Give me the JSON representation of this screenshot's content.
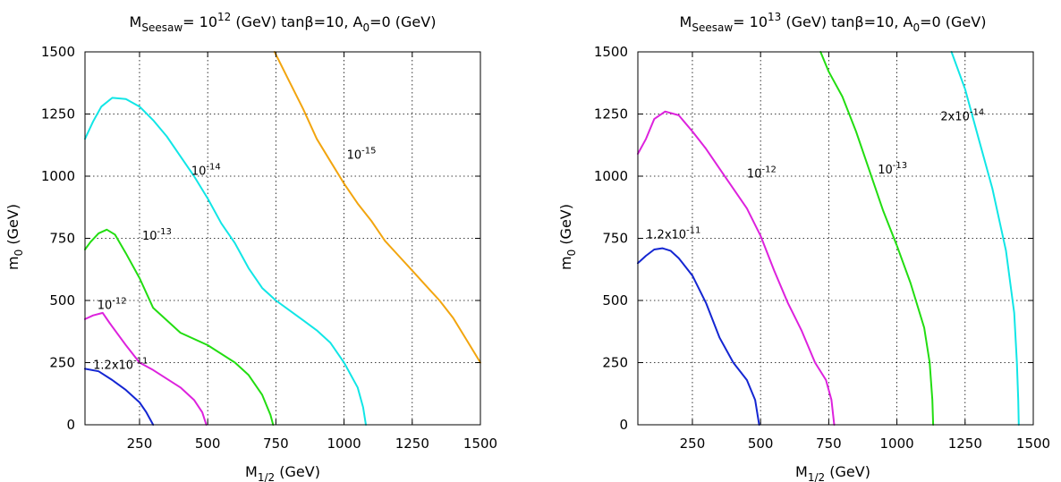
{
  "chart_data": [
    {
      "type": "line",
      "title": {
        "prefix": "M",
        "prefix_sub": "Seesaw",
        "mid": "= 10",
        "exp": "12",
        "suffix": " (GeV) tanβ=10, A",
        "suffix_sub": "0",
        "end": "=0 (GeV)"
      },
      "xlabel": {
        "main": "M",
        "sub": "1/2",
        "rest": " (GeV)"
      },
      "ylabel": {
        "main": "m",
        "sub": "0",
        "rest": " (GeV)"
      },
      "xlim": [
        50,
        1500
      ],
      "ylim": [
        0,
        1500
      ],
      "xticks": [
        250,
        500,
        750,
        1000,
        1250,
        1500
      ],
      "yticks": [
        0,
        250,
        500,
        750,
        1000,
        1250,
        1500
      ],
      "grid": true,
      "series": [
        {
          "label": {
            "base": "1.2x10",
            "exp": "-11"
          },
          "label_at": [
            80,
            225
          ],
          "color": "#1426d2",
          "points": [
            [
              50,
              225
            ],
            [
              100,
              215
            ],
            [
              150,
              180
            ],
            [
              200,
              140
            ],
            [
              250,
              90
            ],
            [
              275,
              50
            ],
            [
              300,
              0
            ]
          ]
        },
        {
          "label": {
            "base": "10",
            "exp": "-12"
          },
          "label_at": [
            95,
            465
          ],
          "color": "#dd22dd",
          "points": [
            [
              50,
              425
            ],
            [
              80,
              440
            ],
            [
              115,
              450
            ],
            [
              140,
              410
            ],
            [
              200,
              320
            ],
            [
              250,
              250
            ],
            [
              300,
              220
            ],
            [
              400,
              150
            ],
            [
              450,
              100
            ],
            [
              480,
              50
            ],
            [
              495,
              0
            ]
          ]
        },
        {
          "label": {
            "base": "10",
            "exp": "-13"
          },
          "label_at": [
            260,
            745
          ],
          "color": "#22dd11",
          "points": [
            [
              50,
              705
            ],
            [
              70,
              735
            ],
            [
              100,
              770
            ],
            [
              130,
              785
            ],
            [
              160,
              765
            ],
            [
              200,
              690
            ],
            [
              250,
              590
            ],
            [
              300,
              470
            ],
            [
              400,
              370
            ],
            [
              500,
              320
            ],
            [
              600,
              250
            ],
            [
              650,
              200
            ],
            [
              700,
              120
            ],
            [
              730,
              40
            ],
            [
              740,
              0
            ]
          ]
        },
        {
          "label": {
            "base": "10",
            "exp": "-14"
          },
          "label_at": [
            440,
            1005
          ],
          "color": "#11e6e6",
          "points": [
            [
              50,
              1150
            ],
            [
              80,
              1220
            ],
            [
              110,
              1280
            ],
            [
              150,
              1315
            ],
            [
              200,
              1310
            ],
            [
              250,
              1280
            ],
            [
              300,
              1225
            ],
            [
              350,
              1160
            ],
            [
              400,
              1080
            ],
            [
              450,
              1000
            ],
            [
              500,
              910
            ],
            [
              550,
              810
            ],
            [
              600,
              730
            ],
            [
              650,
              630
            ],
            [
              700,
              550
            ],
            [
              750,
              500
            ],
            [
              800,
              460
            ],
            [
              850,
              420
            ],
            [
              900,
              380
            ],
            [
              950,
              330
            ],
            [
              1000,
              250
            ],
            [
              1050,
              150
            ],
            [
              1070,
              70
            ],
            [
              1080,
              0
            ]
          ]
        },
        {
          "label": {
            "base": "10",
            "exp": "-15"
          },
          "label_at": [
            1010,
            1070
          ],
          "color": "#f2a50f",
          "points": [
            [
              745,
              1500
            ],
            [
              800,
              1380
            ],
            [
              850,
              1270
            ],
            [
              900,
              1150
            ],
            [
              950,
              1060
            ],
            [
              1000,
              970
            ],
            [
              1050,
              890
            ],
            [
              1100,
              820
            ],
            [
              1150,
              740
            ],
            [
              1200,
              680
            ],
            [
              1250,
              620
            ],
            [
              1300,
              560
            ],
            [
              1350,
              500
            ],
            [
              1400,
              430
            ],
            [
              1450,
              340
            ],
            [
              1500,
              250
            ]
          ]
        }
      ]
    },
    {
      "type": "line",
      "title": {
        "prefix": "M",
        "prefix_sub": "Seesaw",
        "mid": "= 10",
        "exp": "13",
        "suffix": " (GeV) tanβ=10, A",
        "suffix_sub": "0",
        "end": "=0 (GeV)"
      },
      "xlabel": {
        "main": "M",
        "sub": "1/2",
        "rest": " (GeV)"
      },
      "ylabel": {
        "main": "m",
        "sub": "0",
        "rest": " (GeV)"
      },
      "xlim": [
        50,
        1500
      ],
      "ylim": [
        0,
        1500
      ],
      "xticks": [
        250,
        500,
        750,
        1000,
        1250,
        1500
      ],
      "yticks": [
        0,
        250,
        500,
        750,
        1000,
        1250,
        1500
      ],
      "grid": true,
      "series": [
        {
          "label": {
            "base": "1.2x10",
            "exp": "-11"
          },
          "label_at": [
            80,
            750
          ],
          "color": "#1426d2",
          "points": [
            [
              50,
              650
            ],
            [
              80,
              680
            ],
            [
              110,
              705
            ],
            [
              140,
              710
            ],
            [
              170,
              700
            ],
            [
              200,
              670
            ],
            [
              250,
              600
            ],
            [
              300,
              490
            ],
            [
              350,
              350
            ],
            [
              400,
              250
            ],
            [
              450,
              180
            ],
            [
              480,
              100
            ],
            [
              495,
              0
            ]
          ]
        },
        {
          "label": {
            "base": "10",
            "exp": "-12"
          },
          "label_at": [
            450,
            995
          ],
          "color": "#dd22dd",
          "points": [
            [
              50,
              1090
            ],
            [
              80,
              1150
            ],
            [
              110,
              1230
            ],
            [
              150,
              1260
            ],
            [
              200,
              1245
            ],
            [
              250,
              1180
            ],
            [
              300,
              1110
            ],
            [
              350,
              1030
            ],
            [
              400,
              950
            ],
            [
              450,
              870
            ],
            [
              500,
              760
            ],
            [
              550,
              620
            ],
            [
              600,
              490
            ],
            [
              650,
              380
            ],
            [
              700,
              250
            ],
            [
              740,
              180
            ],
            [
              760,
              100
            ],
            [
              770,
              0
            ]
          ]
        },
        {
          "label": {
            "base": "10",
            "exp": "-13"
          },
          "label_at": [
            930,
            1010
          ],
          "color": "#22dd11",
          "points": [
            [
              720,
              1500
            ],
            [
              750,
              1420
            ],
            [
              800,
              1320
            ],
            [
              850,
              1180
            ],
            [
              900,
              1020
            ],
            [
              950,
              860
            ],
            [
              1000,
              720
            ],
            [
              1050,
              570
            ],
            [
              1100,
              390
            ],
            [
              1120,
              250
            ],
            [
              1130,
              100
            ],
            [
              1133,
              0
            ]
          ]
        },
        {
          "label": {
            "base": "2x10",
            "exp": "-14"
          },
          "label_at": [
            1160,
            1225
          ],
          "color": "#11e6e6",
          "points": [
            [
              1200,
              1500
            ],
            [
              1250,
              1350
            ],
            [
              1300,
              1150
            ],
            [
              1350,
              950
            ],
            [
              1400,
              700
            ],
            [
              1430,
              450
            ],
            [
              1440,
              250
            ],
            [
              1445,
              100
            ],
            [
              1447,
              0
            ]
          ]
        }
      ]
    }
  ]
}
